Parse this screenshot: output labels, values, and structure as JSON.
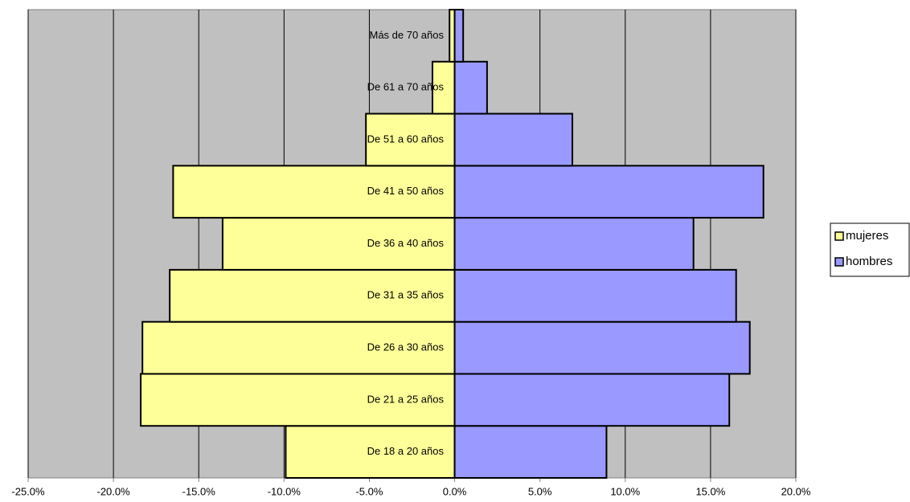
{
  "chart_data": {
    "type": "bar",
    "orientation": "horizontal",
    "stacked": false,
    "categories": [
      "De 18 a 20 años",
      "De 21 a 25 años",
      "De 26 a 30 años",
      "De 31 a 35 años",
      "De 36 a 40 años",
      "De 41 a 50 años",
      "De 51 a 60 años",
      "De 61 a 70 años",
      "Más de 70 años"
    ],
    "series": [
      {
        "name": "mujeres",
        "color": "#ffff99",
        "values": [
          -9.9,
          -18.4,
          -18.3,
          -16.7,
          -13.6,
          -16.5,
          -5.2,
          -1.3,
          -0.3
        ]
      },
      {
        "name": "hombres",
        "color": "#9999ff",
        "values": [
          8.9,
          16.1,
          17.3,
          16.5,
          14.0,
          18.1,
          6.9,
          1.9,
          0.5
        ]
      }
    ],
    "xlim": [
      -25,
      20
    ],
    "xticks": [
      {
        "value": -25,
        "label": "-25.0%"
      },
      {
        "value": -20,
        "label": "-20.0%"
      },
      {
        "value": -15,
        "label": "-15.0%"
      },
      {
        "value": -10,
        "label": "-10.0%"
      },
      {
        "value": -5,
        "label": "-5.0%"
      },
      {
        "value": 0,
        "label": "0.0%"
      },
      {
        "value": 5,
        "label": "5.0%"
      },
      {
        "value": 10,
        "label": "10.0%"
      },
      {
        "value": 15,
        "label": "15.0%"
      },
      {
        "value": 20,
        "label": "20.0%"
      }
    ],
    "grid": true,
    "legend": "right"
  }
}
